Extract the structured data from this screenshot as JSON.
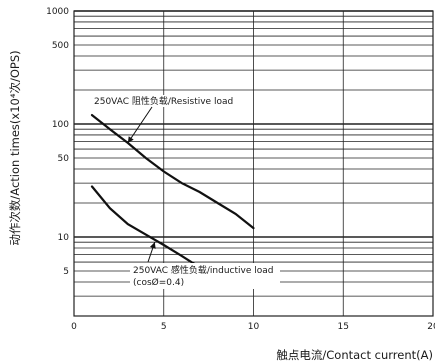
{
  "chart_data": {
    "type": "line",
    "title": "",
    "xlabel": "触点电流/Contact current(A)",
    "ylabel": "动作次数/Action times(x10⁴次/OPS)",
    "xlim": [
      0,
      20
    ],
    "ylim": [
      2,
      1000
    ],
    "y_scale": "log",
    "grid": true,
    "x_ticks": [
      0,
      5,
      10,
      15,
      20
    ],
    "y_ticks": [
      1000,
      500,
      100,
      50,
      10,
      5
    ],
    "series": [
      {
        "name": "250VAC 阻性负载/Resistive load",
        "x": [
          1,
          2,
          3,
          4,
          5,
          6,
          7,
          8,
          9,
          10
        ],
        "y": [
          120,
          90,
          68,
          50,
          38,
          30,
          25,
          20,
          16,
          12
        ]
      },
      {
        "name": "250VAC 感性负载/inductive load",
        "x": [
          1,
          2,
          3,
          4,
          5,
          6,
          7,
          7.5
        ],
        "y": [
          28,
          18,
          13,
          10.5,
          8.5,
          6.8,
          5.4,
          4.8
        ]
      }
    ],
    "annotations": [
      {
        "lines": [
          "250VAC 阻性负载/Resistive load"
        ],
        "points_to": {
          "x": 3,
          "y": 68
        }
      },
      {
        "lines": [
          "250VAC 感性负载/inductive load",
          "(cosØ=0.4)"
        ],
        "points_to": {
          "x": 4.5,
          "y": 9
        }
      }
    ]
  }
}
